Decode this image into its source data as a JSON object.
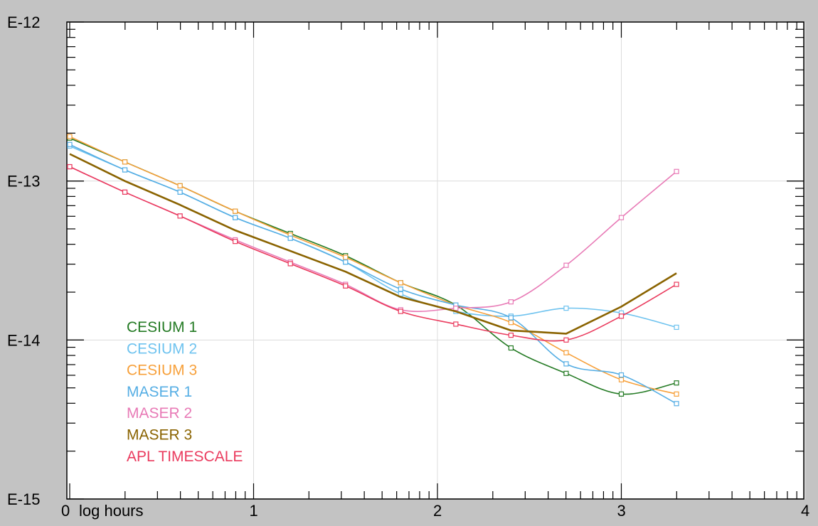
{
  "chart_data": {
    "type": "line",
    "title": "",
    "xlabel": "log hours",
    "ylabel": "",
    "x_scale": "log10 hours",
    "y_scale": "log",
    "xlim": [
      0,
      4.2
    ],
    "ylim_exponent": [
      -15,
      -12
    ],
    "x_tick_labels": [
      {
        "value": 0,
        "label": "0"
      },
      {
        "value": 1,
        "label": "1"
      },
      {
        "value": 2,
        "label": "2"
      },
      {
        "value": 3,
        "label": "3"
      },
      {
        "value": 4,
        "label": "4"
      }
    ],
    "y_tick_labels": [
      {
        "value": -12,
        "label": "E-12"
      },
      {
        "value": -13,
        "label": "E-13"
      },
      {
        "value": -14,
        "label": "E-14"
      },
      {
        "value": -15,
        "label": "E-15"
      }
    ],
    "grid": true,
    "legend_position": "bottom-left",
    "series": [
      {
        "name": "CESIUM 1",
        "color": "#237a23",
        "marker": "square",
        "smooth": true,
        "x": [
          0.0,
          0.3,
          0.6,
          0.9,
          1.2,
          1.5,
          1.8,
          2.1,
          2.4,
          2.7,
          3.0,
          3.3
        ],
        "y": [
          -12.73,
          -12.88,
          -13.03,
          -13.19,
          -13.33,
          -13.47,
          -13.64,
          -13.78,
          -14.05,
          -14.21,
          -14.34,
          -14.27
        ]
      },
      {
        "name": "CESIUM 2",
        "color": "#6fc3ef",
        "marker": "square",
        "smooth": true,
        "x": [
          0.0,
          0.3,
          0.6,
          0.9,
          1.2,
          1.5,
          1.8,
          2.1,
          2.4,
          2.7,
          3.0,
          3.3
        ],
        "y": [
          -12.78,
          -12.93,
          -13.07,
          -13.23,
          -13.36,
          -13.51,
          -13.71,
          -13.82,
          -13.85,
          -13.8,
          -13.83,
          -13.92
        ]
      },
      {
        "name": "CESIUM 3",
        "color": "#f7a03a",
        "marker": "square",
        "smooth": true,
        "x": [
          0.0,
          0.3,
          0.6,
          0.9,
          1.2,
          1.5,
          1.8,
          2.1,
          2.4,
          2.7,
          3.0,
          3.3
        ],
        "y": [
          -12.72,
          -12.88,
          -13.03,
          -13.19,
          -13.34,
          -13.48,
          -13.64,
          -13.78,
          -13.89,
          -14.08,
          -14.25,
          -14.34
        ]
      },
      {
        "name": "MASER 1",
        "color": "#56aee4",
        "marker": "square",
        "smooth": true,
        "x": [
          0.0,
          0.3,
          0.6,
          0.9,
          1.2,
          1.5,
          1.8,
          2.1,
          2.4,
          2.7,
          3.0,
          3.3
        ],
        "y": [
          -12.77,
          -12.93,
          -13.07,
          -13.23,
          -13.36,
          -13.51,
          -13.68,
          -13.78,
          -13.86,
          -14.15,
          -14.22,
          -14.4
        ]
      },
      {
        "name": "MASER 2",
        "color": "#e87ab6",
        "marker": "square",
        "smooth": true,
        "x": [
          0.0,
          0.3,
          0.6,
          0.9,
          1.2,
          1.5,
          1.8,
          2.1,
          2.4,
          2.7,
          3.0,
          3.3
        ],
        "y": [
          -12.91,
          -13.07,
          -13.22,
          -13.37,
          -13.51,
          -13.65,
          -13.81,
          -13.8,
          -13.76,
          -13.53,
          -13.23,
          -12.94
        ]
      },
      {
        "name": "MASER 3",
        "color": "#8a6300",
        "marker": "none",
        "smooth": false,
        "x": [
          0.0,
          0.3,
          0.6,
          0.9,
          1.2,
          1.5,
          1.8,
          2.1,
          2.4,
          2.7,
          3.0,
          3.3
        ],
        "y": [
          -12.83,
          -13.0,
          -13.15,
          -13.31,
          -13.44,
          -13.57,
          -13.73,
          -13.82,
          -13.94,
          -13.96,
          -13.79,
          -13.58
        ]
      },
      {
        "name": "APL TIMESCALE",
        "color": "#ea3b5e",
        "marker": "square",
        "smooth": true,
        "x": [
          0.0,
          0.3,
          0.6,
          0.9,
          1.2,
          1.5,
          1.8,
          2.1,
          2.4,
          2.7,
          3.0,
          3.3
        ],
        "y": [
          -12.91,
          -13.07,
          -13.22,
          -13.38,
          -13.52,
          -13.66,
          -13.82,
          -13.9,
          -13.97,
          -14.0,
          -13.85,
          -13.65
        ]
      }
    ]
  }
}
